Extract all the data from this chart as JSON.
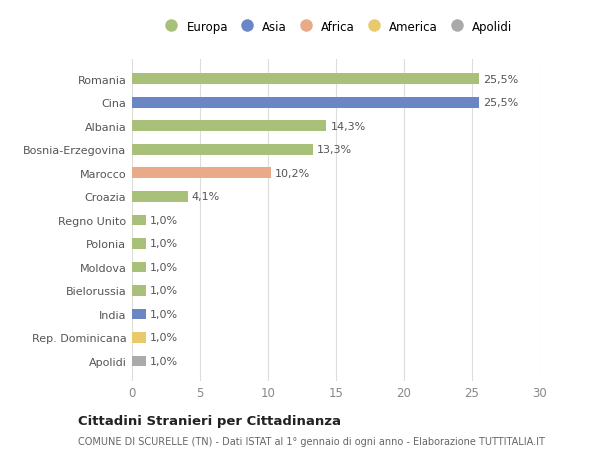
{
  "categories": [
    "Romania",
    "Cina",
    "Albania",
    "Bosnia-Erzegovina",
    "Marocco",
    "Croazia",
    "Regno Unito",
    "Polonia",
    "Moldova",
    "Bielorussia",
    "India",
    "Rep. Dominicana",
    "Apolidi"
  ],
  "values": [
    25.5,
    25.5,
    14.3,
    13.3,
    10.2,
    4.1,
    1.0,
    1.0,
    1.0,
    1.0,
    1.0,
    1.0,
    1.0
  ],
  "labels": [
    "25,5%",
    "25,5%",
    "14,3%",
    "13,3%",
    "10,2%",
    "4,1%",
    "1,0%",
    "1,0%",
    "1,0%",
    "1,0%",
    "1,0%",
    "1,0%",
    "1,0%"
  ],
  "colors": [
    "#a8c07a",
    "#6b86c4",
    "#a8c07a",
    "#a8c07a",
    "#e8aa87",
    "#a8c07a",
    "#a8c07a",
    "#a8c07a",
    "#a8c07a",
    "#a8c07a",
    "#6b86c4",
    "#e8c96b",
    "#aaaaaa"
  ],
  "legend_labels": [
    "Europa",
    "Asia",
    "Africa",
    "America",
    "Apolidi"
  ],
  "legend_colors": [
    "#a8c07a",
    "#6b86c4",
    "#e8aa87",
    "#e8c96b",
    "#aaaaaa"
  ],
  "title": "Cittadini Stranieri per Cittadinanza",
  "subtitle": "COMUNE DI SCURELLE (TN) - Dati ISTAT al 1° gennaio di ogni anno - Elaborazione TUTTITALIA.IT",
  "xlim": [
    0,
    30
  ],
  "xticks": [
    0,
    5,
    10,
    15,
    20,
    25,
    30
  ],
  "background_color": "#ffffff",
  "grid_color": "#dddddd",
  "bar_height": 0.45,
  "label_fontsize": 8.0,
  "ytick_fontsize": 8.0,
  "xtick_fontsize": 8.5
}
